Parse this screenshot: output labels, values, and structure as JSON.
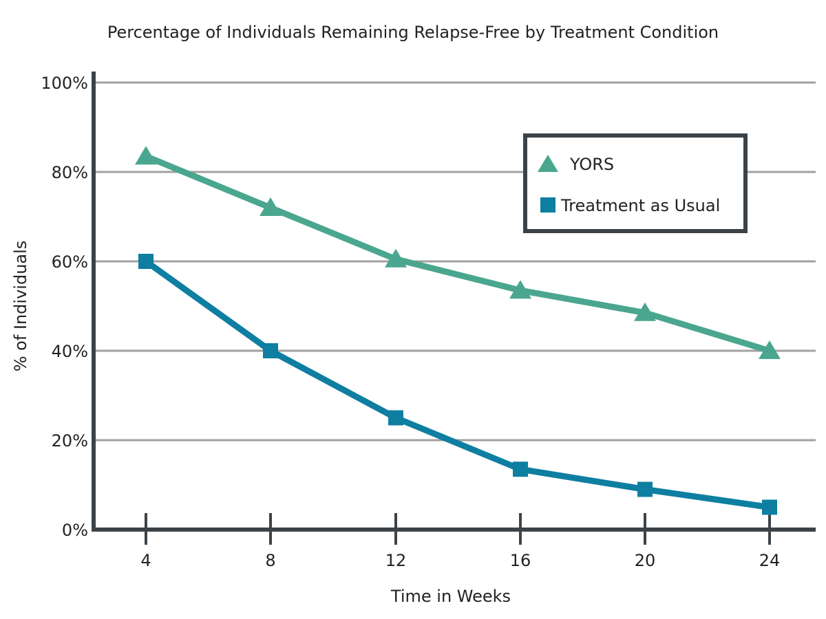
{
  "chart_data": {
    "type": "line",
    "title": "Percentage of Individuals Remaining Relapse-Free by Treatment Condition",
    "xlabel": "Time in Weeks",
    "ylabel": "% of Individuals",
    "x": [
      4,
      8,
      12,
      16,
      20,
      24
    ],
    "x_tick_labels": [
      "4",
      "8",
      "12",
      "16",
      "20",
      "24"
    ],
    "ylim": [
      0,
      100
    ],
    "y_ticks": [
      0,
      20,
      40,
      60,
      80,
      100
    ],
    "y_tick_labels": [
      "0%",
      "20%",
      "40%",
      "60%",
      "80%",
      "100%"
    ],
    "grid": true,
    "legend_position": "top-right",
    "series": [
      {
        "name": "YORS",
        "values": [
          83.5,
          72,
          60.5,
          53.5,
          48.5,
          40
        ],
        "color": "#4aa68f",
        "marker": "triangle"
      },
      {
        "name": "Treatment as Usual",
        "values": [
          60,
          40,
          25,
          13.5,
          9,
          5
        ],
        "color": "#0e7ea1",
        "marker": "square"
      }
    ],
    "axis_color": "#3c4348",
    "grid_color": "#a0a0a0"
  }
}
